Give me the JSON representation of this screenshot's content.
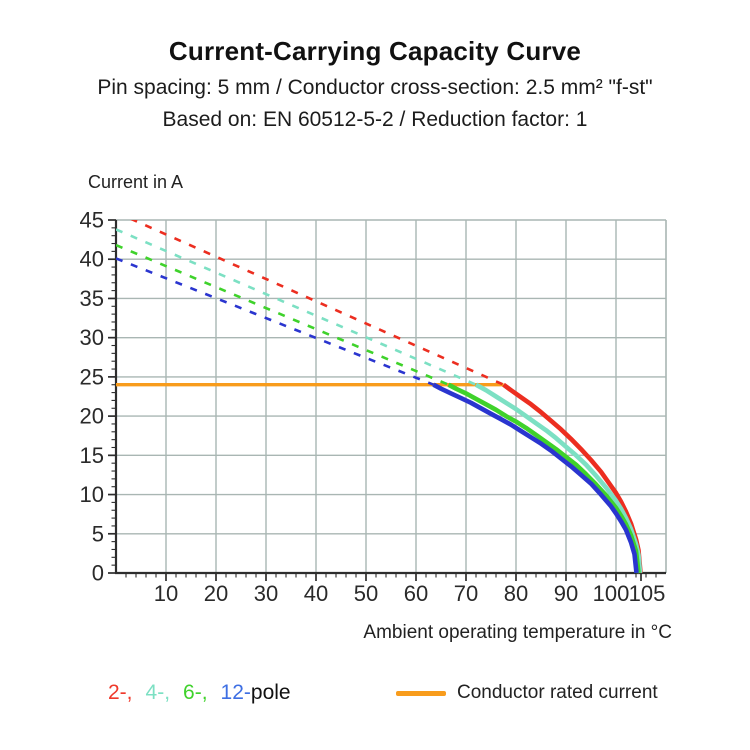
{
  "header": {
    "title": "Current-Carrying Capacity Curve",
    "subtitle_line1": "Pin spacing: 5 mm / Conductor cross-section: 2.5 mm² \"f-st\"",
    "subtitle_line2": "Based on: EN 60512-5-2 / Reduction factor: 1"
  },
  "chart_data": {
    "type": "line",
    "ylabel": "Current in A",
    "xlabel": "Ambient operating temperature in °C",
    "xlim": [
      0,
      110
    ],
    "ylim": [
      0,
      45
    ],
    "x_ticks": [
      10,
      20,
      30,
      40,
      50,
      60,
      70,
      80,
      90,
      100,
      105
    ],
    "x_minor_step": 2,
    "y_ticks": [
      0,
      5,
      10,
      15,
      20,
      25,
      30,
      35,
      40,
      45
    ],
    "y_minor_step": 1,
    "x_gridlines": [
      10,
      20,
      30,
      40,
      50,
      60,
      70,
      80,
      90,
      100
    ],
    "y_gridlines": [
      5,
      10,
      15,
      20,
      25,
      30,
      35,
      40
    ],
    "grid_color": "#a9b6b3",
    "axis_color": "#2d2d2d",
    "text_color": "#2a2a2a",
    "rated_current": {
      "value": 24,
      "x_start": 0,
      "x_end": 77.5,
      "color": "#f89c1c"
    },
    "series": [
      {
        "name": "2-pole",
        "color": "#ec2e20",
        "dash_points": [
          [
            0,
            46
          ],
          [
            77.5,
            24
          ]
        ],
        "solid_points": [
          [
            77.5,
            24
          ],
          [
            79,
            23.3
          ],
          [
            81,
            22.4
          ],
          [
            83,
            21.5
          ],
          [
            85,
            20.5
          ],
          [
            87,
            19.4
          ],
          [
            89,
            18.3
          ],
          [
            91,
            17.1
          ],
          [
            93,
            15.8
          ],
          [
            95,
            14.4
          ],
          [
            97,
            12.9
          ],
          [
            99,
            11.1
          ],
          [
            100,
            10.2
          ],
          [
            101,
            9.1
          ],
          [
            102,
            7.8
          ],
          [
            103,
            6.3
          ],
          [
            104,
            4.3
          ],
          [
            104.5,
            2.9
          ],
          [
            104.9,
            0
          ]
        ]
      },
      {
        "name": "4-pole",
        "color": "#7ce0c3",
        "dash_points": [
          [
            0,
            43.8
          ],
          [
            72,
            24
          ]
        ],
        "solid_points": [
          [
            72,
            24
          ],
          [
            74,
            23.3
          ],
          [
            76,
            22.5
          ],
          [
            78,
            21.7
          ],
          [
            80,
            20.9
          ],
          [
            82,
            20
          ],
          [
            84,
            19.1
          ],
          [
            86,
            18.2
          ],
          [
            88,
            17.2
          ],
          [
            90,
            16.1
          ],
          [
            92,
            15
          ],
          [
            94,
            13.8
          ],
          [
            96,
            12.4
          ],
          [
            98,
            10.9
          ],
          [
            100,
            9.2
          ],
          [
            101,
            8.2
          ],
          [
            102,
            7
          ],
          [
            103,
            5.6
          ],
          [
            104,
            3.7
          ],
          [
            104.5,
            2.3
          ],
          [
            104.8,
            0
          ]
        ]
      },
      {
        "name": "6-pole",
        "color": "#3fd22b",
        "dash_points": [
          [
            0,
            41.8
          ],
          [
            66.5,
            24
          ]
        ],
        "solid_points": [
          [
            66.5,
            24
          ],
          [
            68,
            23.5
          ],
          [
            70,
            22.9
          ],
          [
            72,
            22.2
          ],
          [
            74,
            21.5
          ],
          [
            76,
            20.8
          ],
          [
            78,
            20
          ],
          [
            80,
            19.3
          ],
          [
            82,
            18.5
          ],
          [
            84,
            17.6
          ],
          [
            86,
            16.7
          ],
          [
            88,
            15.8
          ],
          [
            90,
            14.8
          ],
          [
            92,
            13.8
          ],
          [
            94,
            12.6
          ],
          [
            96,
            11.3
          ],
          [
            98,
            9.9
          ],
          [
            100,
            8.3
          ],
          [
            101,
            7.3
          ],
          [
            102,
            6.2
          ],
          [
            103,
            4.8
          ],
          [
            104,
            2.8
          ],
          [
            104.5,
            0
          ]
        ]
      },
      {
        "name": "12-pole",
        "color": "#2a35cf",
        "dash_points": [
          [
            0,
            40.1
          ],
          [
            63.5,
            24
          ]
        ],
        "solid_points": [
          [
            63.5,
            24
          ],
          [
            65,
            23.5
          ],
          [
            67,
            22.9
          ],
          [
            69,
            22.3
          ],
          [
            71,
            21.7
          ],
          [
            73,
            21
          ],
          [
            75,
            20.3
          ],
          [
            77,
            19.6
          ],
          [
            79,
            18.9
          ],
          [
            81,
            18.1
          ],
          [
            83,
            17.3
          ],
          [
            85,
            16.5
          ],
          [
            87,
            15.6
          ],
          [
            89,
            14.6
          ],
          [
            91,
            13.6
          ],
          [
            93,
            12.5
          ],
          [
            95,
            11.4
          ],
          [
            97,
            10
          ],
          [
            99,
            8.5
          ],
          [
            100,
            7.6
          ],
          [
            101,
            6.6
          ],
          [
            102,
            5.5
          ],
          [
            103,
            3.9
          ],
          [
            103.7,
            2.4
          ],
          [
            104.1,
            0
          ]
        ]
      }
    ]
  },
  "legend": {
    "poles": [
      {
        "label": "2-,",
        "color": "#ef392b"
      },
      {
        "label": "4-,",
        "color": "#7ce0c3"
      },
      {
        "label": "6-,",
        "color": "#3fd22b"
      },
      {
        "label": "12-",
        "color": "#3e6fe3"
      }
    ],
    "poles_suffix": "pole",
    "rated_label": "Conductor rated current",
    "rated_color": "#f89c1c"
  }
}
